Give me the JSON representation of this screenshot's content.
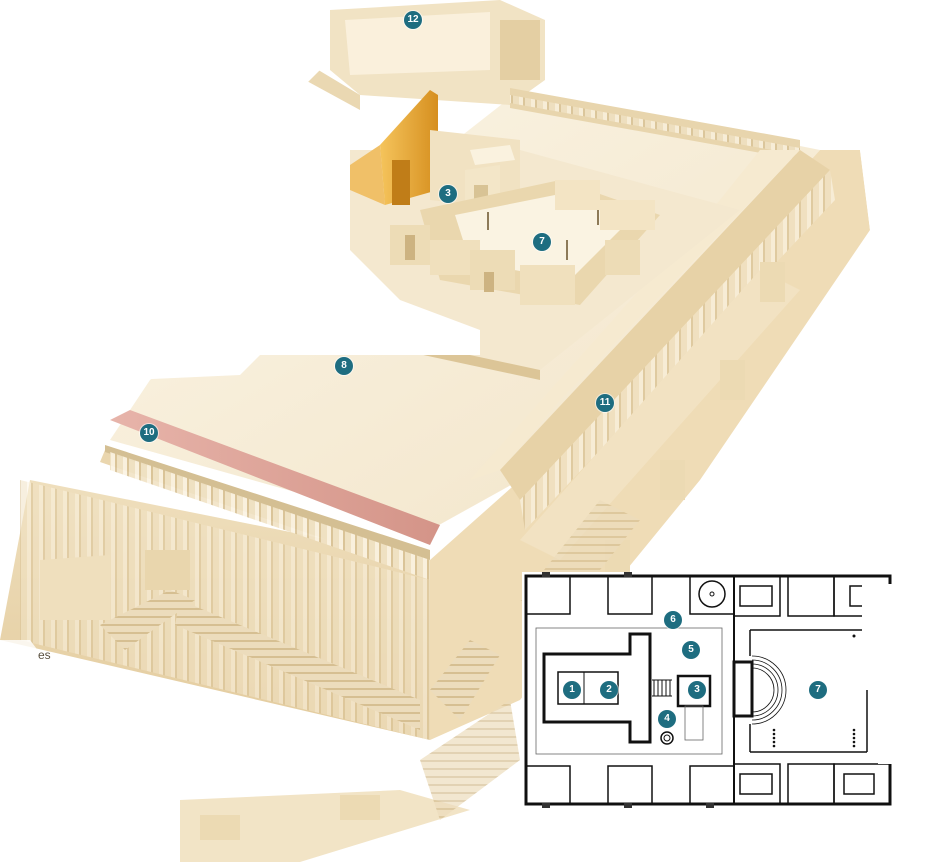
{
  "markers": {
    "m1": "1",
    "m2": "2",
    "m3": "3",
    "m4": "4",
    "m5": "5",
    "m6": "6",
    "m7": "7",
    "m8": "8",
    "m10": "10",
    "m11": "11",
    "m12": "12"
  },
  "plan_markers": {
    "p1": "1",
    "p2": "2",
    "p3": "3",
    "p4": "4",
    "p5": "5",
    "p6": "6",
    "p7": "7"
  },
  "fragment_text": "es",
  "colors": {
    "marker": "#1e6d80",
    "gold": "#e9a93a",
    "stone": "#f3e7cc",
    "stone_shadow": "#d9c49a",
    "roof": "#d9a39a",
    "plan_wall": "#111111"
  },
  "icons": {
    "marker": "numbered-circle-marker",
    "trees": "palm-tree-icon",
    "basin": "laver-circle-icon"
  }
}
